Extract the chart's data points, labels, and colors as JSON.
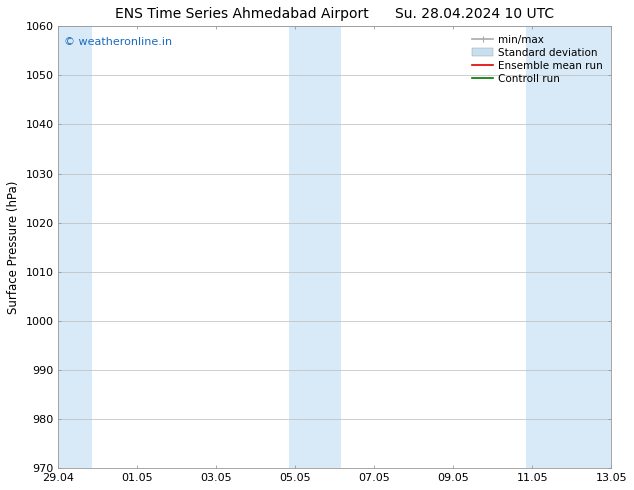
{
  "title_left": "ENS Time Series Ahmedabad Airport",
  "title_right": "Su. 28.04.2024 10 UTC",
  "ylabel": "Surface Pressure (hPa)",
  "ylim": [
    970,
    1060
  ],
  "yticks": [
    970,
    980,
    990,
    1000,
    1010,
    1020,
    1030,
    1040,
    1050,
    1060
  ],
  "xtick_labels": [
    "29.04",
    "01.05",
    "03.05",
    "05.05",
    "07.05",
    "09.05",
    "11.05",
    "13.05"
  ],
  "xtick_positions": [
    0,
    2,
    4,
    6,
    8,
    10,
    12,
    14
  ],
  "xlim": [
    0,
    14
  ],
  "shaded_bands": [
    {
      "x_start": -0.15,
      "x_end": 0.85,
      "color": "#d8eaf7"
    },
    {
      "x_start": 5.85,
      "x_end": 7.15,
      "color": "#d8eaf7"
    },
    {
      "x_start": 11.85,
      "x_end": 14.15,
      "color": "#d8eaf7"
    }
  ],
  "watermark_text": "© weatheronline.in",
  "watermark_color": "#1a6bbf",
  "legend_items": [
    {
      "label": "min/max",
      "color": "#aaaaaa",
      "lw": 1.2,
      "style": "line_with_caps"
    },
    {
      "label": "Standard deviation",
      "color": "#c8dff0",
      "lw": 8,
      "style": "band"
    },
    {
      "label": "Ensemble mean run",
      "color": "#dd0000",
      "lw": 1.2,
      "style": "line"
    },
    {
      "label": "Controll run",
      "color": "#007700",
      "lw": 1.2,
      "style": "line"
    }
  ],
  "bg_color": "#ffffff",
  "plot_bg_color": "#ffffff",
  "grid_color": "#bbbbbb",
  "title_fontsize": 10,
  "label_fontsize": 8.5,
  "tick_fontsize": 8,
  "legend_fontsize": 7.5
}
